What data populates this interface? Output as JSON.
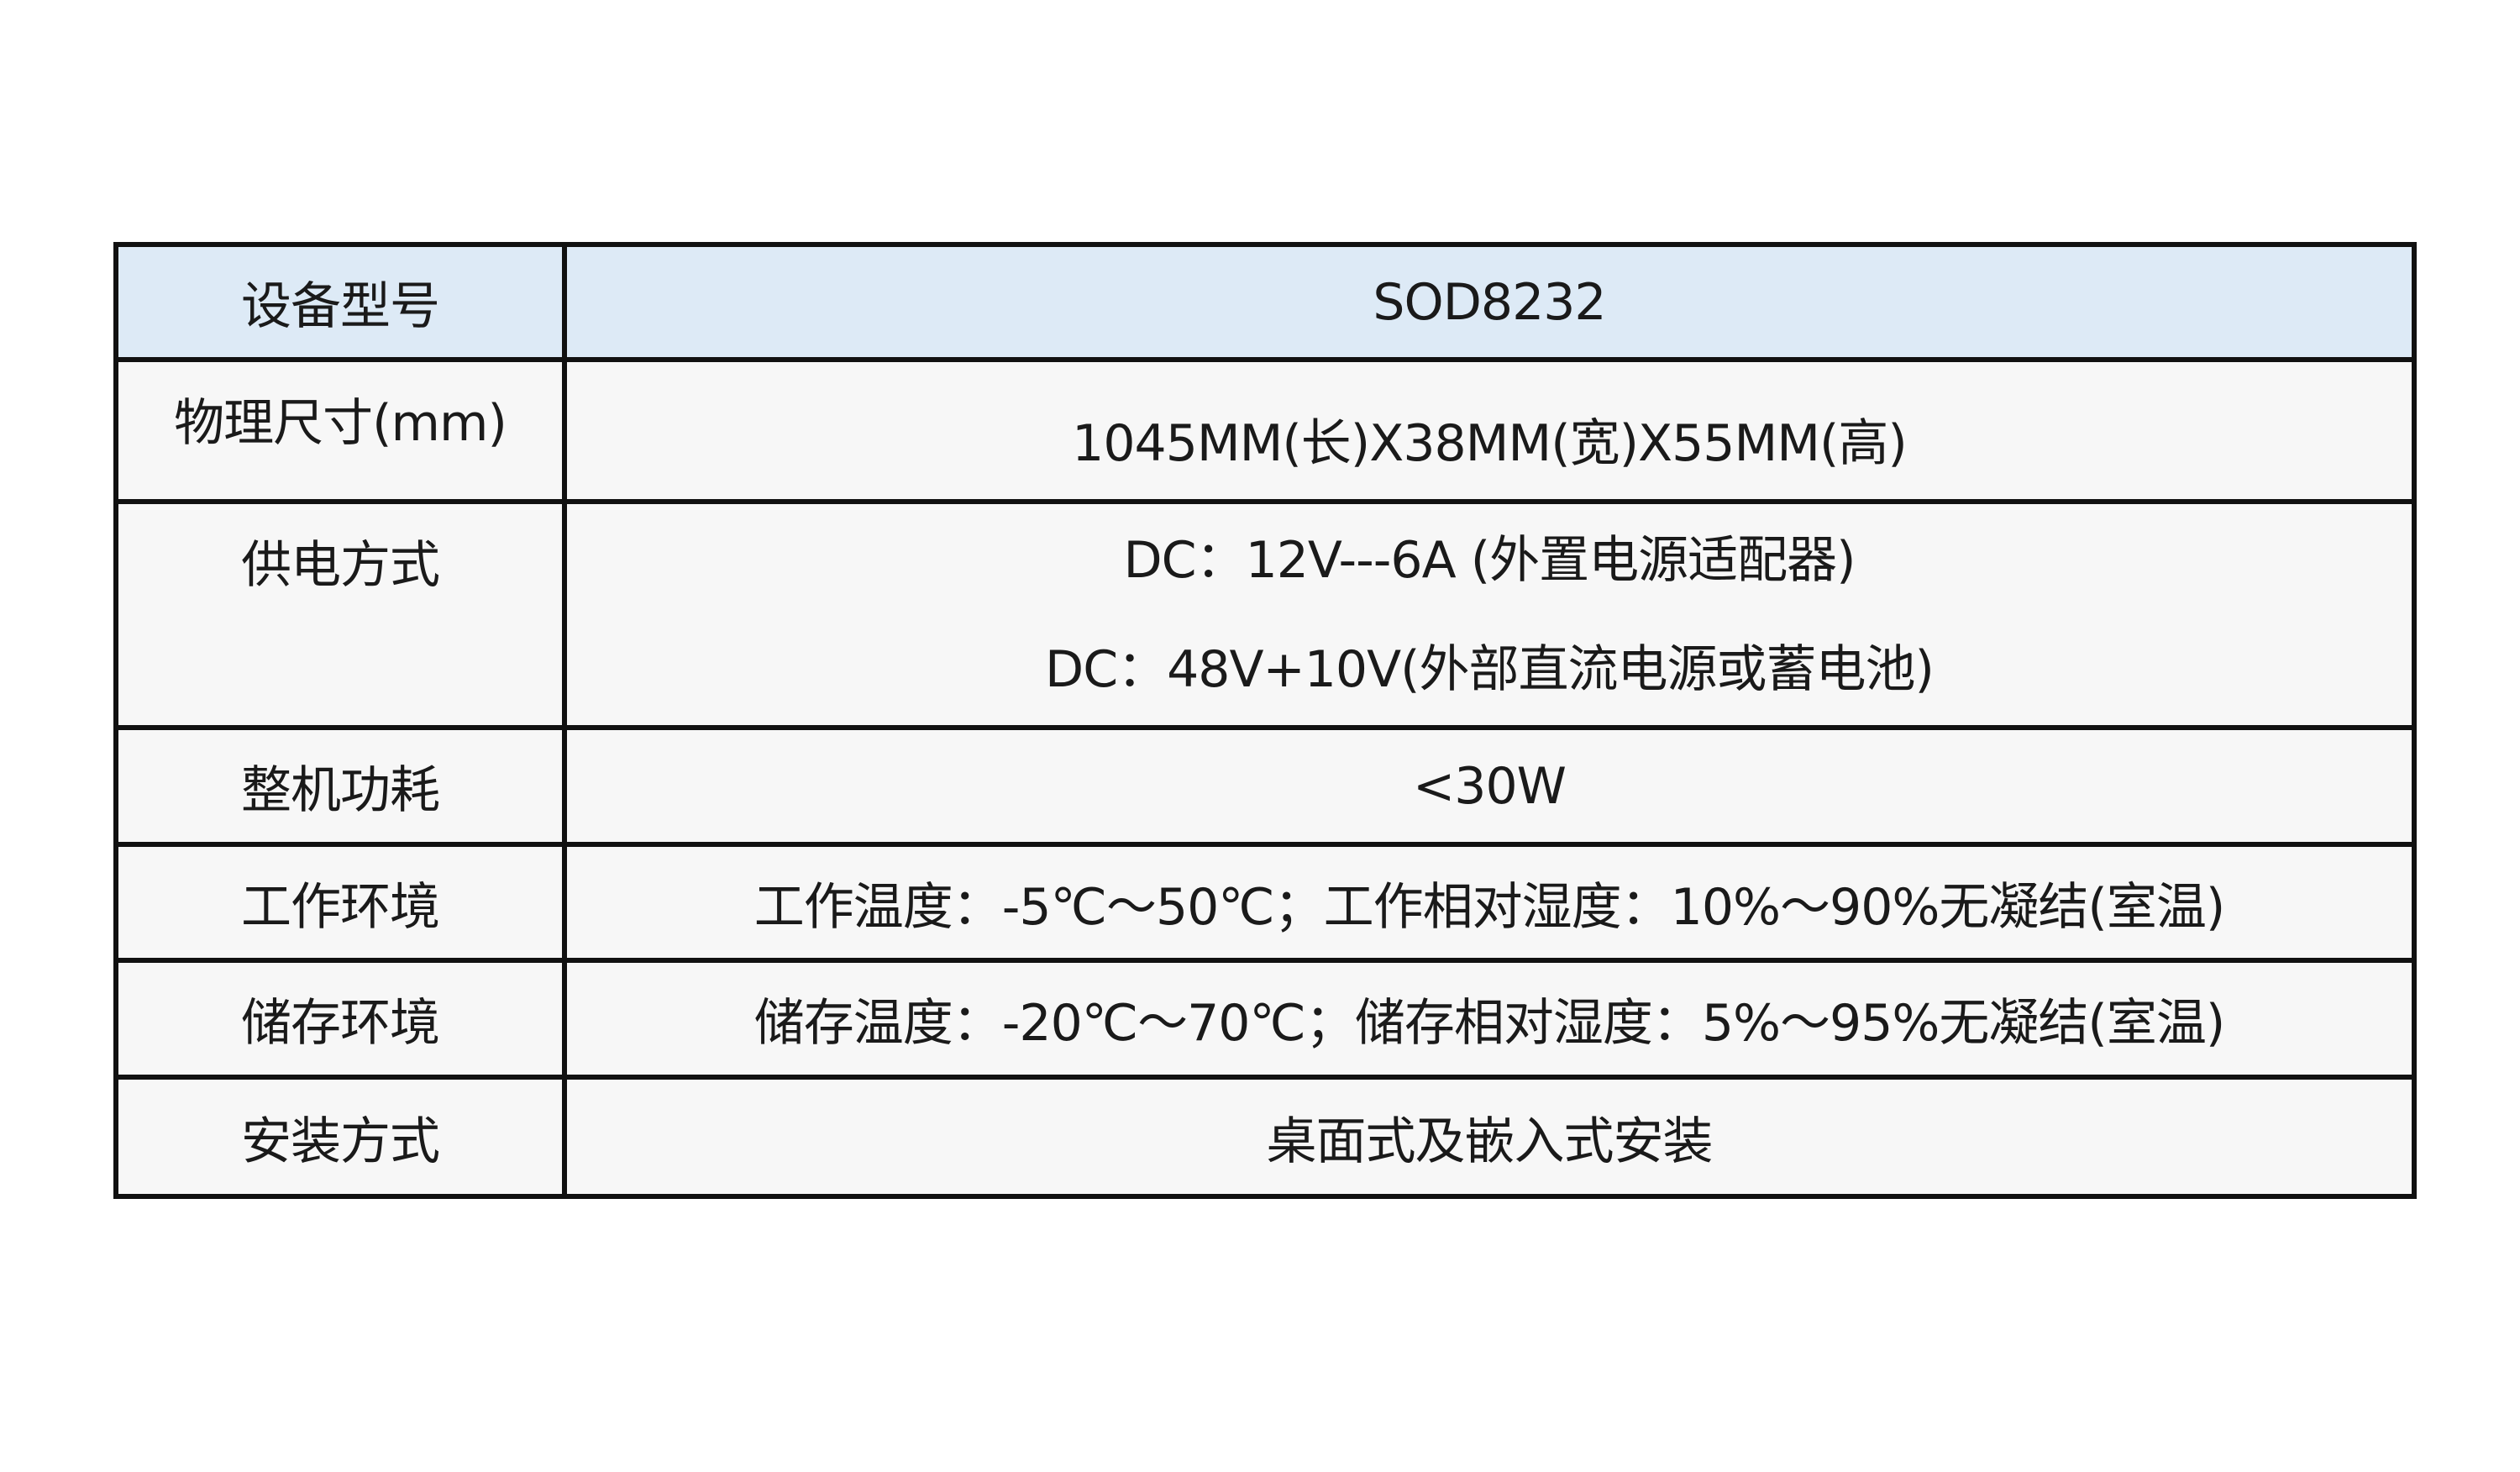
{
  "table": {
    "rows": [
      {
        "label": "设备型号",
        "values": [
          "SOD8232"
        ]
      },
      {
        "label": "物理尺寸(mm)",
        "values": [
          "1045MM(长)X38MM(宽)X55MM(高)"
        ]
      },
      {
        "label": "供电方式",
        "values": [
          "DC：12V---6A (外置电源适配器)",
          "DC：48V+10V(外部直流电源或蓄电池)"
        ]
      },
      {
        "label": "整机功耗",
        "values": [
          "<30W"
        ]
      },
      {
        "label": "工作环境",
        "values": [
          "工作温度：-5℃～50℃；工作相对湿度：10%～90%无凝结(室温)"
        ]
      },
      {
        "label": "储存环境",
        "values": [
          "储存温度：-20℃～70℃；储存相对湿度：5%～95%无凝结(室温)"
        ]
      },
      {
        "label": "安装方式",
        "values": [
          "桌面式及嵌入式安装"
        ]
      }
    ],
    "colors": {
      "header_bg": "#ddeaf6",
      "row_bg": "#f7f7f7",
      "border": "#111111"
    }
  }
}
